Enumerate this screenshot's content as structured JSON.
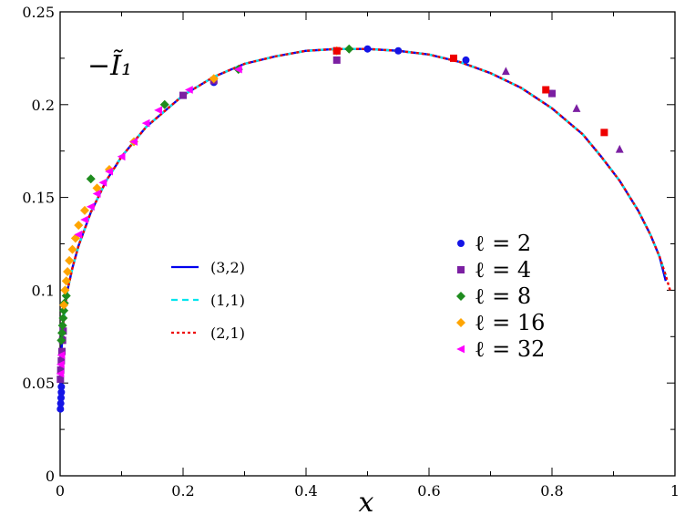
{
  "chart_data": {
    "type": "line",
    "xlabel": "x",
    "ylabel": "",
    "annotation": "−Ĩ₁",
    "xlim": [
      0,
      1
    ],
    "ylim": [
      0,
      0.25
    ],
    "xticks": [
      "0",
      "0.2",
      "0.4",
      "0.6",
      "0.8",
      "1"
    ],
    "yticks": [
      "0",
      "0.05",
      "0.1",
      "0.15",
      "0.2",
      "0.25"
    ],
    "grid": false,
    "legend_lines_placement": "center-left",
    "legend_markers_placement": "center-right",
    "line_series": [
      {
        "name": "(3,2)",
        "color": "#0000ee",
        "dash": "solid",
        "x": [
          0.0005,
          0.001,
          0.002,
          0.004,
          0.007,
          0.012,
          0.02,
          0.03,
          0.05,
          0.075,
          0.1,
          0.14,
          0.2,
          0.25,
          0.3,
          0.35,
          0.4,
          0.45,
          0.5,
          0.55,
          0.6,
          0.65,
          0.7,
          0.75,
          0.8,
          0.85,
          0.88,
          0.91,
          0.94,
          0.96,
          0.975,
          0.985
        ],
        "y": [
          0.048,
          0.056,
          0.066,
          0.078,
          0.089,
          0.1,
          0.112,
          0.124,
          0.142,
          0.159,
          0.172,
          0.188,
          0.205,
          0.215,
          0.222,
          0.226,
          0.229,
          0.23,
          0.23,
          0.229,
          0.227,
          0.223,
          0.217,
          0.209,
          0.198,
          0.184,
          0.172,
          0.159,
          0.143,
          0.13,
          0.118,
          0.105
        ]
      },
      {
        "name": "(1,1)",
        "color": "#00e5ee",
        "dash": "dashed",
        "x": [
          0.003,
          0.005,
          0.008,
          0.012,
          0.02,
          0.03,
          0.05,
          0.075,
          0.1,
          0.14,
          0.2,
          0.25,
          0.3,
          0.35,
          0.4,
          0.45,
          0.5,
          0.55,
          0.6,
          0.65,
          0.7,
          0.75,
          0.8,
          0.85,
          0.88,
          0.91,
          0.94,
          0.96,
          0.975,
          0.985
        ],
        "y": [
          0.073,
          0.082,
          0.091,
          0.1,
          0.112,
          0.124,
          0.142,
          0.159,
          0.172,
          0.188,
          0.205,
          0.215,
          0.222,
          0.226,
          0.229,
          0.23,
          0.23,
          0.229,
          0.227,
          0.223,
          0.217,
          0.209,
          0.198,
          0.184,
          0.172,
          0.159,
          0.143,
          0.13,
          0.118,
          0.108
        ]
      },
      {
        "name": "(2,1)",
        "color": "#ee0000",
        "dash": "dotted",
        "x": [
          0.005,
          0.008,
          0.012,
          0.02,
          0.03,
          0.05,
          0.075,
          0.1,
          0.14,
          0.2,
          0.25,
          0.3,
          0.35,
          0.4,
          0.45,
          0.5,
          0.55,
          0.6,
          0.65,
          0.7,
          0.75,
          0.8,
          0.85,
          0.88,
          0.91,
          0.94,
          0.96,
          0.975,
          0.985,
          0.992
        ],
        "y": [
          0.082,
          0.091,
          0.1,
          0.112,
          0.124,
          0.142,
          0.159,
          0.172,
          0.188,
          0.205,
          0.215,
          0.222,
          0.226,
          0.229,
          0.23,
          0.23,
          0.229,
          0.227,
          0.223,
          0.217,
          0.209,
          0.198,
          0.184,
          0.172,
          0.159,
          0.143,
          0.13,
          0.118,
          0.108,
          0.1
        ]
      }
    ],
    "marker_series": [
      {
        "name": "ℓ = 2",
        "color": "#1414e6",
        "marker": "circle",
        "x": [
          0.0005,
          0.001,
          0.0015,
          0.002,
          0.002,
          0.25,
          0.45,
          0.5,
          0.55,
          0.66,
          0.8
        ],
        "y": [
          0.036,
          0.039,
          0.042,
          0.045,
          0.048,
          0.212,
          0.229,
          0.23,
          0.229,
          0.224,
          0.206
        ]
      },
      {
        "name": "ℓ = 4",
        "color": "#7b1fa2",
        "marker": "square",
        "x": [
          0.0005,
          0.001,
          0.002,
          0.003,
          0.004,
          0.005,
          0.2,
          0.25,
          0.45,
          0.45,
          0.8
        ],
        "y": [
          0.052,
          0.057,
          0.062,
          0.067,
          0.073,
          0.078,
          0.205,
          0.213,
          0.224,
          0.229,
          0.206
        ]
      },
      {
        "name": "ℓ = 8",
        "color": "#1e8c1e",
        "marker": "diamond",
        "x": [
          0.002,
          0.003,
          0.004,
          0.005,
          0.006,
          0.007,
          0.01,
          0.05,
          0.17,
          0.29,
          0.47
        ],
        "y": [
          0.073,
          0.077,
          0.081,
          0.085,
          0.089,
          0.093,
          0.097,
          0.16,
          0.2,
          0.219,
          0.23
        ]
      },
      {
        "name": "ℓ = 16",
        "color": "#ffa500",
        "marker": "diamond",
        "x": [
          0.006,
          0.008,
          0.01,
          0.012,
          0.015,
          0.02,
          0.025,
          0.03,
          0.04,
          0.06,
          0.08,
          0.12,
          0.25,
          0.45
        ],
        "y": [
          0.092,
          0.1,
          0.105,
          0.11,
          0.116,
          0.122,
          0.128,
          0.135,
          0.143,
          0.155,
          0.165,
          0.18,
          0.214,
          0.229
        ]
      },
      {
        "name": "ℓ = 32",
        "color": "#ff00ff",
        "marker": "triangle-left",
        "x": [
          0.0005,
          0.001,
          0.002,
          0.03,
          0.04,
          0.05,
          0.06,
          0.07,
          0.08,
          0.1,
          0.12,
          0.14,
          0.16,
          0.21,
          0.29
        ],
        "y": [
          0.055,
          0.06,
          0.065,
          0.13,
          0.138,
          0.145,
          0.152,
          0.158,
          0.164,
          0.172,
          0.18,
          0.19,
          0.197,
          0.208,
          0.219
        ]
      },
      {
        "name": "",
        "color": "#ee0000",
        "marker": "square",
        "x": [
          0.45,
          0.64,
          0.79,
          0.885
        ],
        "y": [
          0.229,
          0.225,
          0.208,
          0.185
        ]
      },
      {
        "name": "",
        "color": "#7b1fa2",
        "marker": "triangle-up",
        "x": [
          0.725,
          0.84,
          0.91
        ],
        "y": [
          0.218,
          0.198,
          0.176
        ]
      }
    ]
  }
}
